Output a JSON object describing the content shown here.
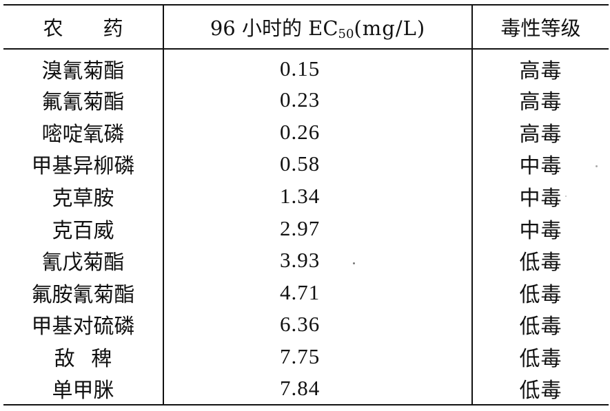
{
  "table": {
    "headers": {
      "pesticide": "农药",
      "ec50_prefix": "96 小时的 EC",
      "ec50_sub": "50",
      "ec50_unit": "(mg/L)",
      "toxicity": "毒性等级"
    },
    "rows": [
      {
        "pesticide": "溴氰菊酯",
        "ec50": "0.15",
        "toxicity": "高毒"
      },
      {
        "pesticide": "氟氰菊酯",
        "ec50": "0.23",
        "toxicity": "高毒"
      },
      {
        "pesticide": "嘧啶氧磷",
        "ec50": "0.26",
        "toxicity": "高毒"
      },
      {
        "pesticide": "甲基异柳磷",
        "ec50": "0.58",
        "toxicity": "中毒"
      },
      {
        "pesticide": "克草胺",
        "ec50": "1.34",
        "toxicity": "中毒"
      },
      {
        "pesticide": "克百威",
        "ec50": "2.97",
        "toxicity": "中毒"
      },
      {
        "pesticide": "氰戊菊酯",
        "ec50": "3.93",
        "toxicity": "低毒"
      },
      {
        "pesticide": "氟胺氰菊酯",
        "ec50": "4.71",
        "toxicity": "低毒"
      },
      {
        "pesticide": "甲基对硫磷",
        "ec50": "6.36",
        "toxicity": "低毒"
      },
      {
        "pesticide": "敌 稗",
        "ec50": "7.75",
        "toxicity": "低毒"
      },
      {
        "pesticide": "单甲脒",
        "ec50": "7.84",
        "toxicity": "低毒"
      }
    ]
  }
}
